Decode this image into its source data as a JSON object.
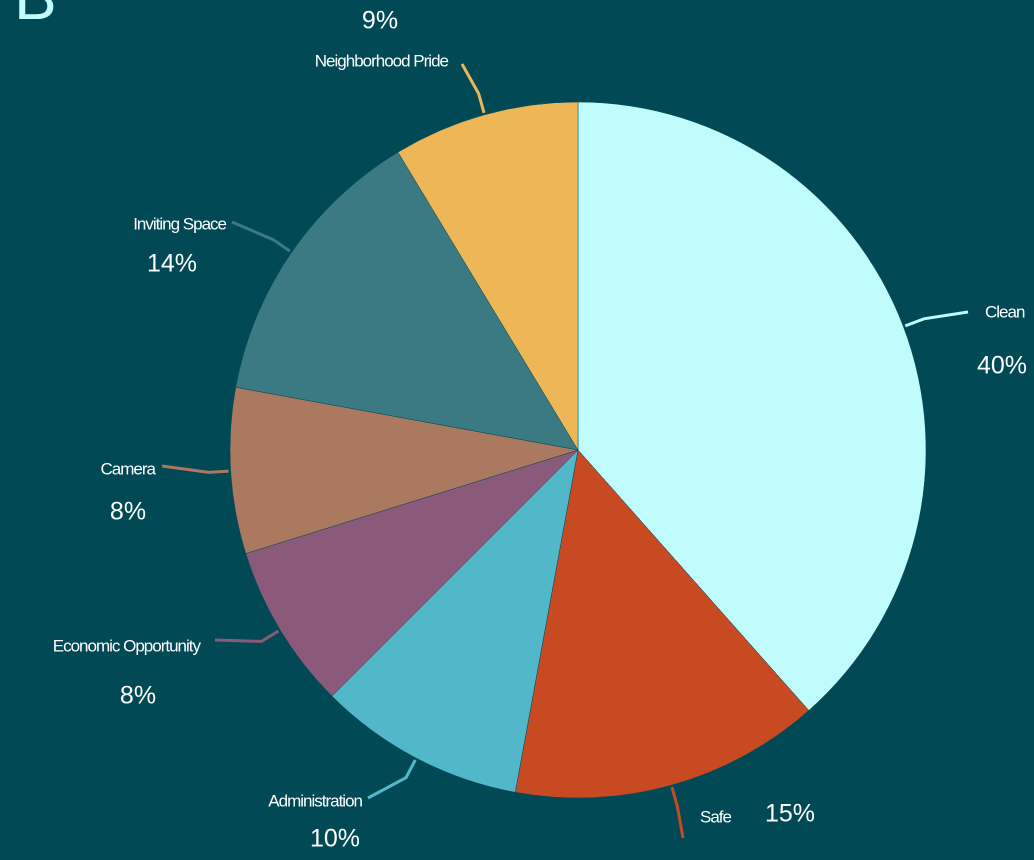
{
  "chart_data": {
    "type": "pie",
    "title": "B",
    "categories": [
      "Clean",
      "Safe",
      "Administration",
      "Economic Opportunity",
      "Camera",
      "Inviting Space",
      "Neighborhood Pride"
    ],
    "values": [
      40,
      15,
      10,
      8,
      8,
      14,
      9
    ],
    "value_labels": [
      "40%",
      "15%",
      "10%",
      "8%",
      "8%",
      "14%",
      "9%"
    ],
    "colors": [
      "#c0fcfb",
      "#c84a23",
      "#52b7c9",
      "#8b5a7a",
      "#ab7860",
      "#3b7a82",
      "#edb757"
    ]
  }
}
